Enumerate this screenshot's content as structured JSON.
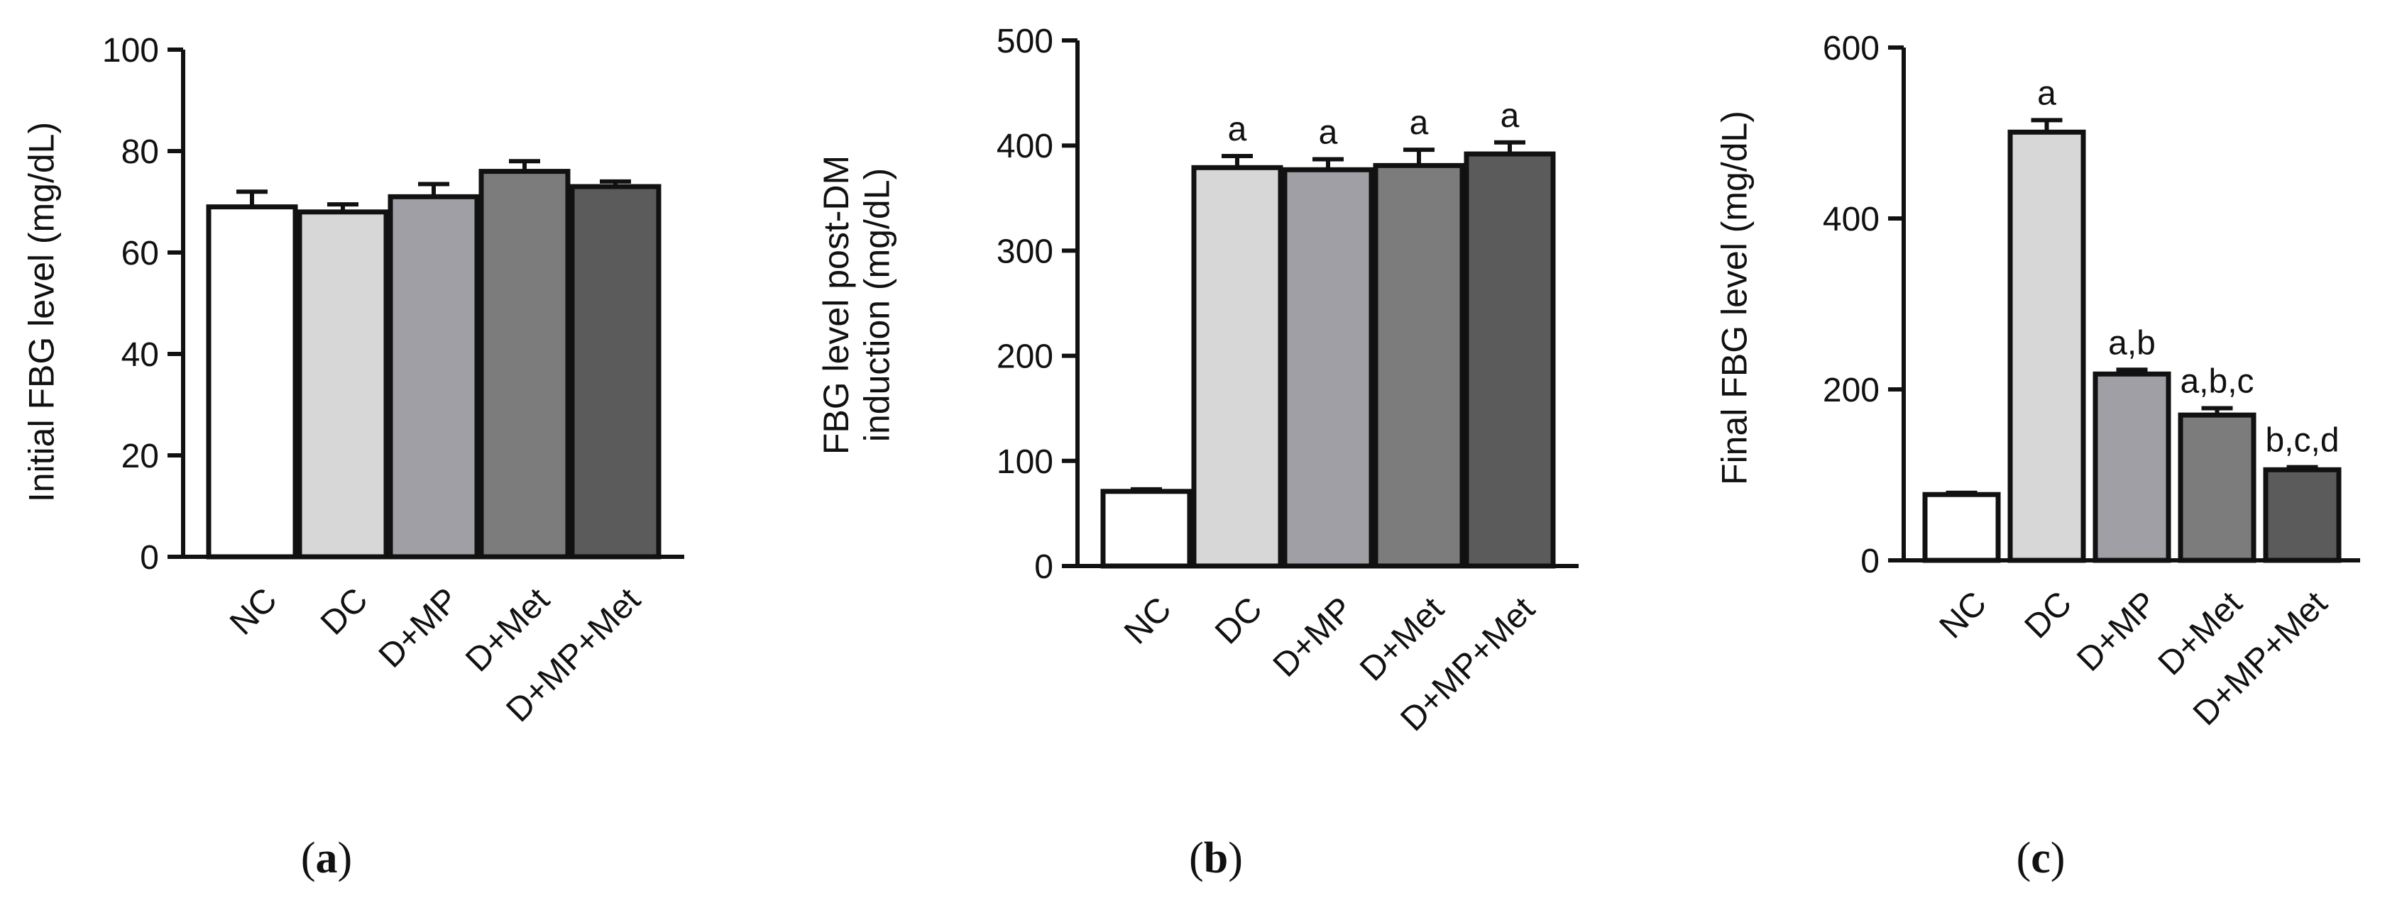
{
  "chart_data": [
    {
      "type": "bar",
      "panel_label": "a",
      "ylabel": "Initial FBG level (mg/dL)",
      "xlabel": "",
      "categories": [
        "NC",
        "DC",
        "D+MP",
        "D+Met",
        "D+MP+Met"
      ],
      "values": [
        69,
        68,
        71,
        76,
        73
      ],
      "errors": [
        3,
        1.5,
        2.5,
        2,
        1
      ],
      "significance": [
        "",
        "",
        "",
        "",
        ""
      ],
      "ylim": [
        0,
        100
      ],
      "yticks": [
        "0",
        "20",
        "40",
        "60",
        "80",
        "100"
      ],
      "grid": false,
      "legend": "none"
    },
    {
      "type": "bar",
      "panel_label": "b",
      "ylabel": "FBG level post-DM\ninduction (mg/dL)",
      "xlabel": "",
      "categories": [
        "NC",
        "DC",
        "D+MP",
        "D+Met",
        "D+MP+Met"
      ],
      "values": [
        71,
        379,
        377,
        381,
        392
      ],
      "errors": [
        2,
        11,
        10,
        15,
        11
      ],
      "significance": [
        "",
        "a",
        "a",
        "a",
        "a"
      ],
      "ylim": [
        0,
        500
      ],
      "yticks": [
        "0",
        "100",
        "200",
        "300",
        "400",
        "500"
      ],
      "grid": false,
      "legend": "none"
    },
    {
      "type": "bar",
      "panel_label": "c",
      "ylabel": "Final FBG level (mg/dL)",
      "xlabel": "",
      "categories": [
        "NC",
        "DC",
        "D+MP",
        "D+Met",
        "D+MP+Met"
      ],
      "values": [
        77,
        501,
        218,
        170,
        106
      ],
      "errors": [
        2,
        14,
        5,
        8,
        3
      ],
      "significance": [
        "",
        "a",
        "a,b",
        "a,b,c",
        "b,c,d"
      ],
      "ylim": [
        0,
        600
      ],
      "yticks": [
        "0",
        "200",
        "400",
        "600"
      ],
      "grid": false,
      "legend": "none"
    }
  ],
  "colors": {
    "bar_fills": [
      "#ffffff",
      "#d7d7d7",
      "#a09fa6",
      "#7c7c7c",
      "#5b5b5b"
    ],
    "stroke": "#111111"
  }
}
